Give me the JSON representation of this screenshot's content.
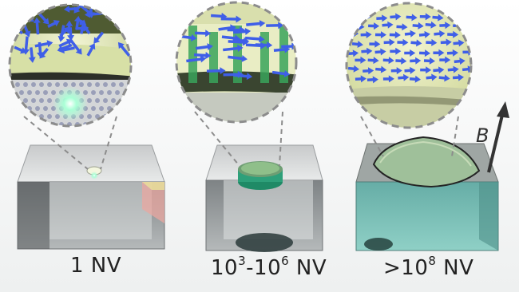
{
  "panels": [
    {
      "id": "single",
      "label_main": "1 NV",
      "exp1": "",
      "exp2": "",
      "suffix": ""
    },
    {
      "id": "ensemble",
      "label_main": "10",
      "exp1": "3",
      "mid": "-10",
      "exp2": "6",
      "suffix": " NV"
    },
    {
      "id": "bulk",
      "label_prefix": ">10",
      "exp1": "8",
      "suffix": " NV"
    }
  ],
  "field_label": "B",
  "colors": {
    "spin_arrow": "#3f5fe8",
    "pillar": "#3aa35a",
    "magnifier_fill": "#e6ecc0",
    "diamond_gray": "#8e9294",
    "diamond_teal": "#6fb6b0",
    "nv_glow": "#9bffcf",
    "dashed_outline": "#8c8c8c"
  }
}
